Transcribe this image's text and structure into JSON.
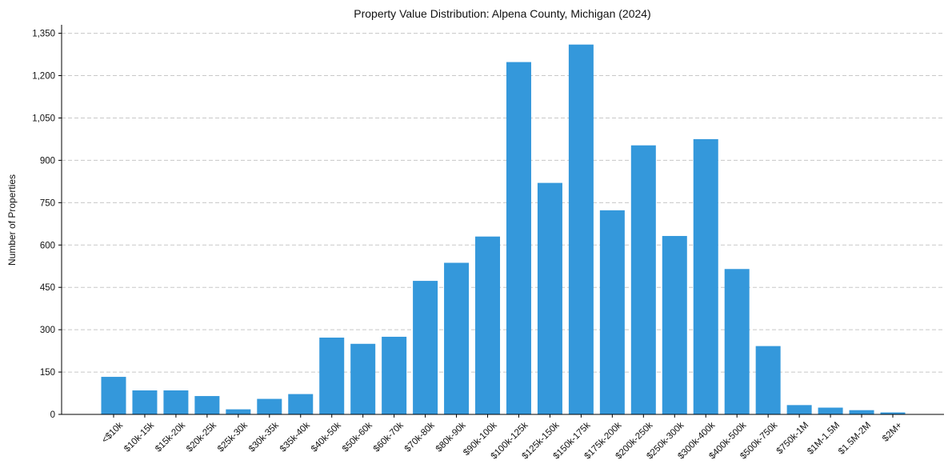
{
  "chart_data": {
    "type": "bar",
    "title": "Property Value Distribution: Alpena County, Michigan (2024)",
    "xlabel": "",
    "ylabel": "Number of Properties",
    "ylim": [
      0,
      1380
    ],
    "yticks": [
      0,
      150,
      300,
      450,
      600,
      750,
      900,
      1050,
      1200,
      1350
    ],
    "ytick_labels": [
      "0",
      "150",
      "300",
      "450",
      "600",
      "750",
      "900",
      "1,050",
      "1,200",
      "1,350"
    ],
    "grid": "y-dashed",
    "bar_color": "#3498db",
    "categories": [
      "<$10k",
      "$10k-15k",
      "$15k-20k",
      "$20k-25k",
      "$25k-30k",
      "$30k-35k",
      "$35k-40k",
      "$40k-50k",
      "$50k-60k",
      "$60k-70k",
      "$70k-80k",
      "$80k-90k",
      "$90k-100k",
      "$100k-125k",
      "$125k-150k",
      "$150k-175k",
      "$175k-200k",
      "$200k-250k",
      "$250k-300k",
      "$300k-400k",
      "$400k-500k",
      "$500k-750k",
      "$750k-1M",
      "$1M-1.5M",
      "$1.5M-2M",
      "$2M+"
    ],
    "values": [
      133,
      85,
      85,
      65,
      18,
      55,
      72,
      272,
      250,
      275,
      473,
      537,
      630,
      1248,
      820,
      1310,
      723,
      953,
      632,
      975,
      515,
      242,
      33,
      24,
      15,
      7
    ]
  }
}
